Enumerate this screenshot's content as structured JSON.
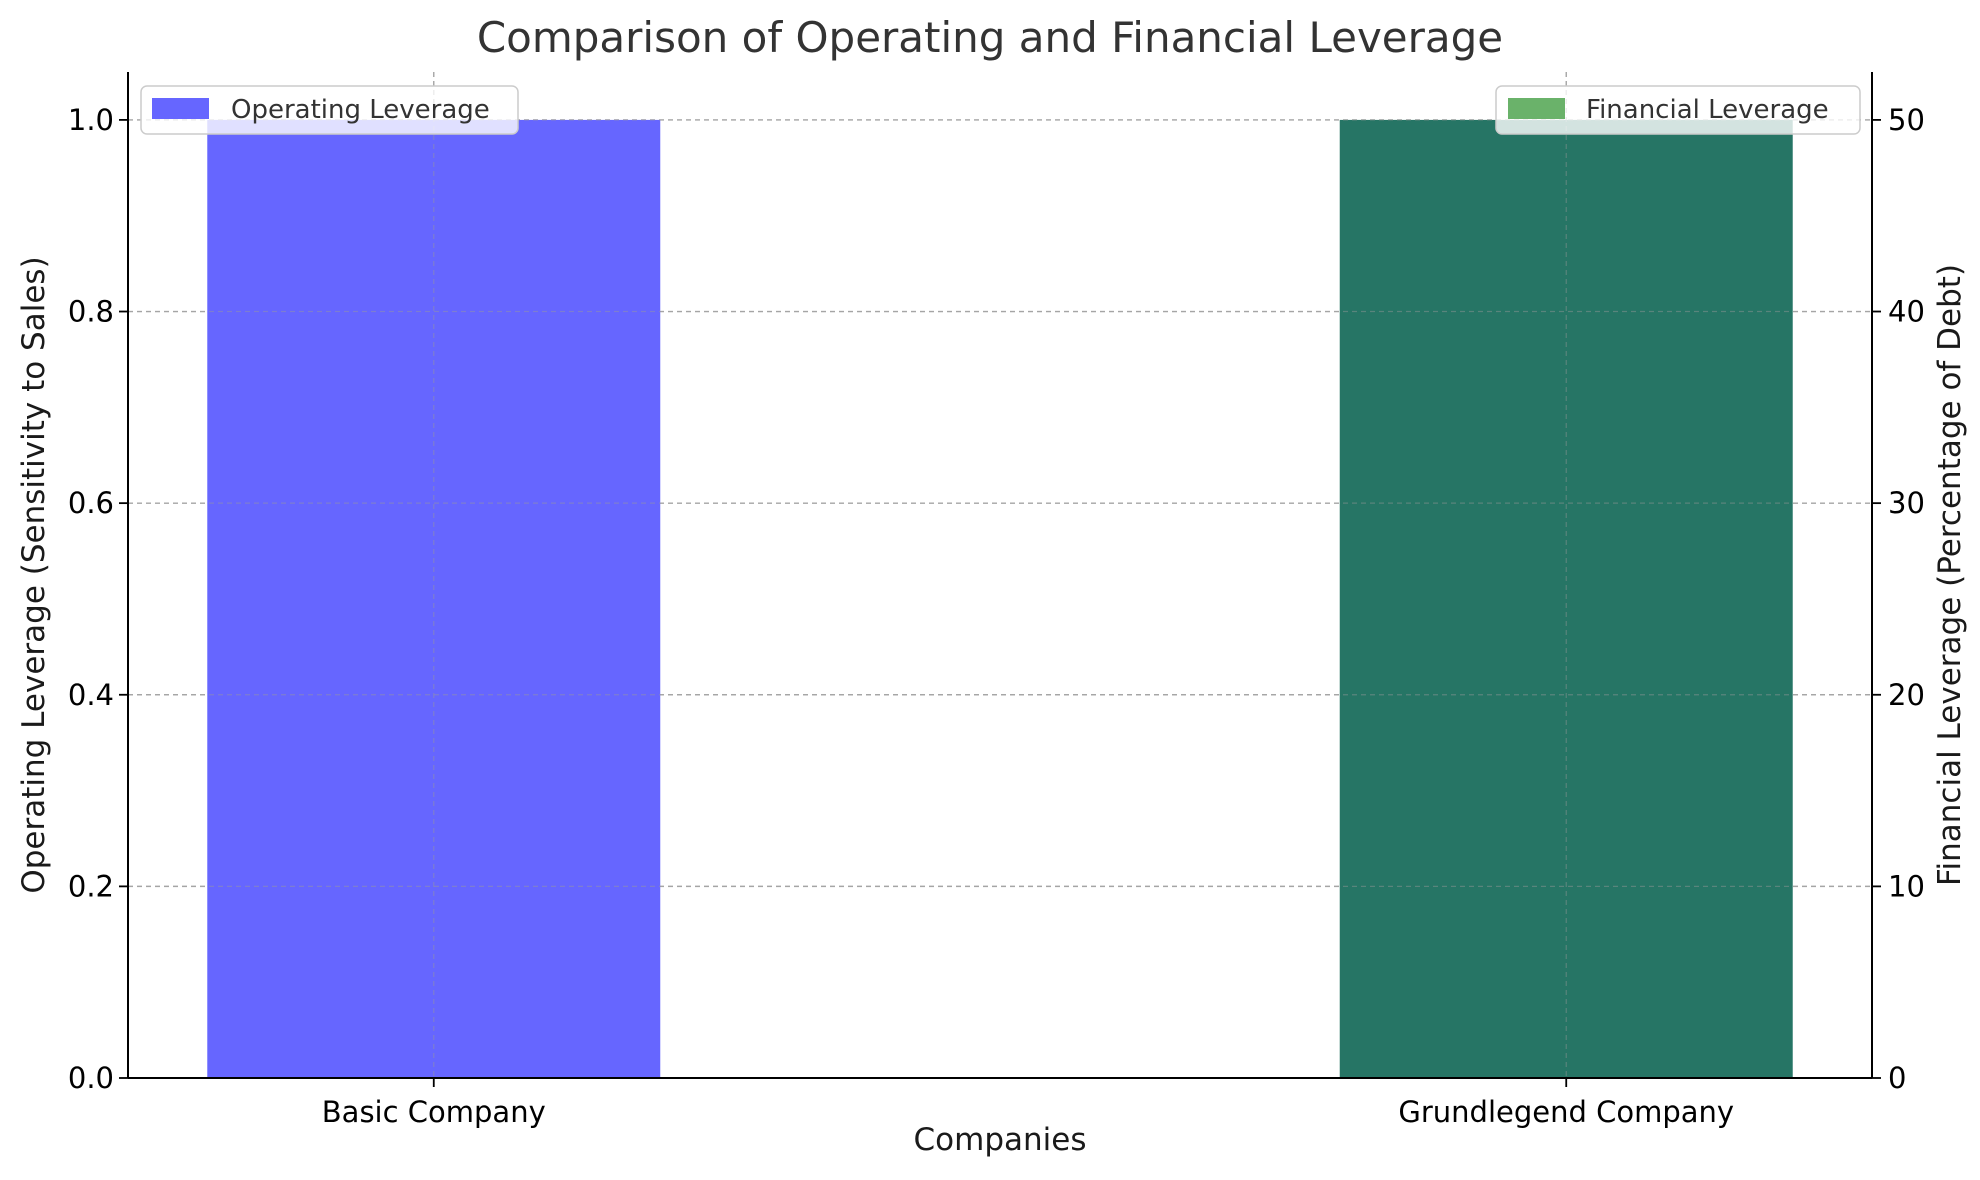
{
  "chart_data": {
    "type": "bar",
    "title": "Comparison of Operating and Financial Leverage",
    "xlabel": "Companies",
    "ylabel_left": "Operating Leverage (Sensitivity to Sales)",
    "ylabel_right": "Financial Leverage (Percentage of Debt)",
    "categories": [
      "Basic Company",
      "Grundlegend Company"
    ],
    "ylim_left": [
      0,
      1.05
    ],
    "ylim_right": [
      0,
      52.5
    ],
    "yticks_left": [
      "0.0",
      "0.2",
      "0.4",
      "0.6",
      "0.8",
      "1.0"
    ],
    "yticks_right": [
      "0",
      "10",
      "20",
      "30",
      "40",
      "50"
    ],
    "grid": true,
    "series": [
      {
        "name": "Operating Leverage",
        "axis": "left",
        "values": [
          1.0,
          0.0
        ],
        "color": "#6666ff",
        "legend_position": "top-left"
      },
      {
        "name": "Financial Leverage",
        "axis": "right",
        "values": [
          0,
          50
        ],
        "color": "#267565",
        "legend_color": "#6ab26a",
        "legend_position": "top-right"
      }
    ]
  }
}
